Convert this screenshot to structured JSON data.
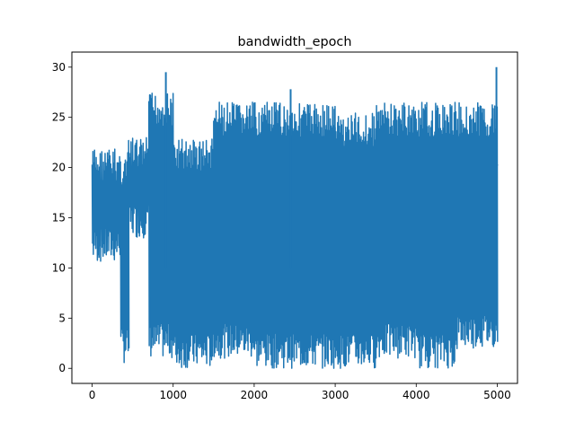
{
  "chart_data": {
    "type": "line",
    "title": "bandwidth_epoch",
    "xlabel": "",
    "ylabel": "",
    "xlim": [
      -250,
      5250
    ],
    "ylim": [
      -1.5,
      31.5
    ],
    "xticks": [
      0,
      1000,
      2000,
      3000,
      4000,
      5000
    ],
    "yticks": [
      0,
      5,
      10,
      15,
      20,
      25,
      30
    ],
    "grid": false,
    "legend": "none",
    "color": "#1f77b4",
    "segments": [
      {
        "x": [
          0,
          350
        ],
        "low": 10.5,
        "high": 22.0
      },
      {
        "x": [
          350,
          450
        ],
        "low": 0.5,
        "high": 21.5
      },
      {
        "x": [
          450,
          700
        ],
        "low": 13.0,
        "high": 23.0
      },
      {
        "x": [
          700,
          1000
        ],
        "low": 1.0,
        "high": 27.5
      },
      {
        "x": [
          1000,
          1500
        ],
        "low": 0.0,
        "high": 23.0
      },
      {
        "x": [
          1500,
          2000
        ],
        "low": 1.0,
        "high": 26.5
      },
      {
        "x": [
          2000,
          3000
        ],
        "low": 0.0,
        "high": 26.5
      },
      {
        "x": [
          3000,
          3500
        ],
        "low": 0.0,
        "high": 25.5
      },
      {
        "x": [
          3500,
          4000
        ],
        "low": 1.0,
        "high": 26.5
      },
      {
        "x": [
          4000,
          4500
        ],
        "low": 0.0,
        "high": 26.5
      },
      {
        "x": [
          4500,
          5000
        ],
        "low": 2.0,
        "high": 26.5
      }
    ],
    "peaks": [
      {
        "x": 910,
        "y": 29.5
      },
      {
        "x": 2450,
        "y": 27.8
      },
      {
        "x": 4990,
        "y": 30.0
      }
    ],
    "end_value": {
      "x": 5000,
      "y": 20.2
    }
  }
}
